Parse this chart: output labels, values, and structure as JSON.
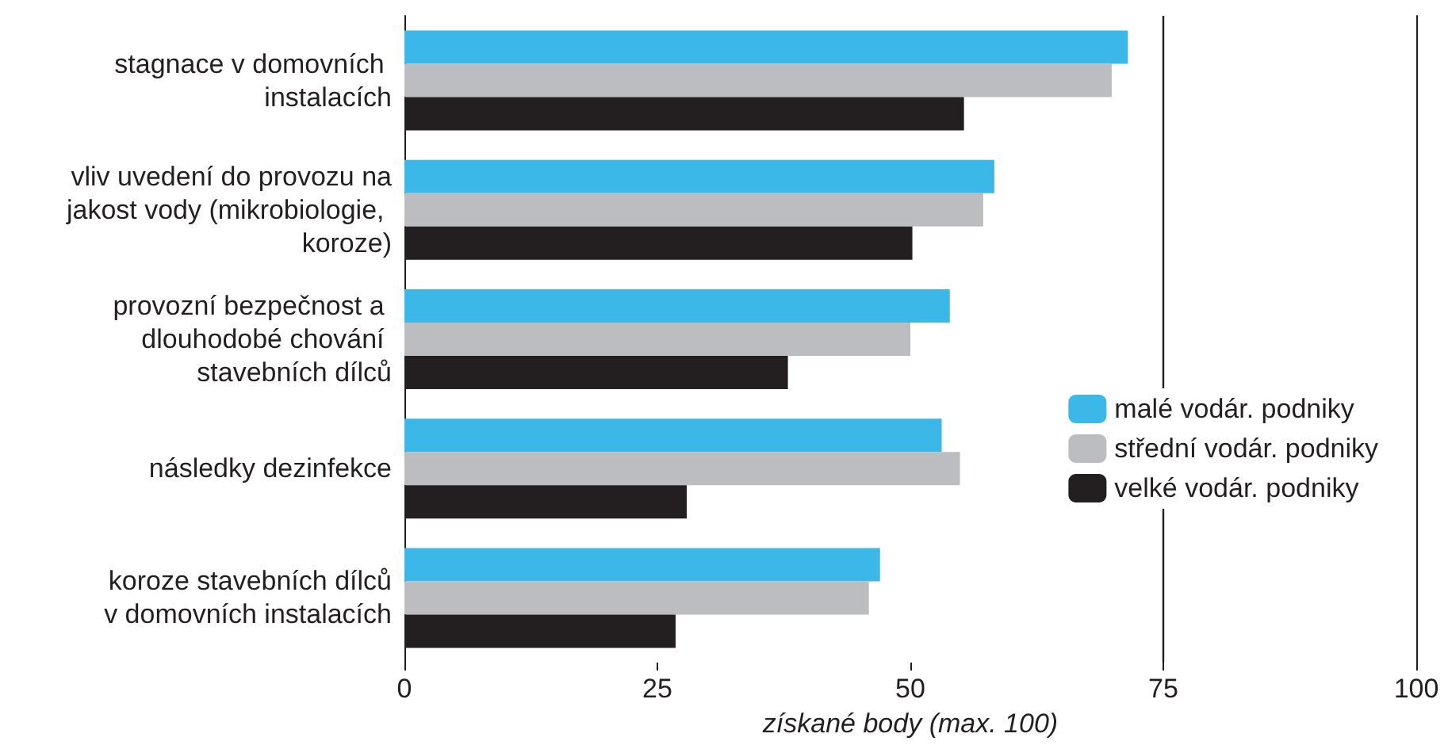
{
  "chart_data": {
    "type": "bar",
    "orientation": "horizontal",
    "xlabel": "získané body (max. 100)",
    "categories": [
      "stagnace v domovních instalacích",
      "vliv uvedení do provozu na jakost vody (mikrobiologie, koroze)",
      "provozní bezpečnost a dlouhodobé chování stavebních dílců",
      "následky dezinfekce",
      "koroze stavebních dílců v domovních instalacích"
    ],
    "series": [
      {
        "name": "malé vodár. podniky",
        "color": "#3bb8e8",
        "values": [
          71.5,
          58.3,
          53.9,
          53.1,
          47.0
        ]
      },
      {
        "name": "střední vodár. podniky",
        "color": "#bcbdc0",
        "values": [
          69.9,
          57.2,
          50.0,
          54.9,
          45.9
        ]
      },
      {
        "name": "velké vodár. podniky",
        "color": "#231f20",
        "values": [
          55.3,
          50.2,
          37.9,
          27.9,
          26.8
        ]
      }
    ],
    "xlim": [
      0,
      100
    ],
    "xticks": [
      0,
      25,
      50,
      75,
      100
    ],
    "ref_lines": [
      {
        "axis": "x",
        "value": 75,
        "color": "#231f20"
      }
    ],
    "grid": false,
    "legend": "right"
  }
}
